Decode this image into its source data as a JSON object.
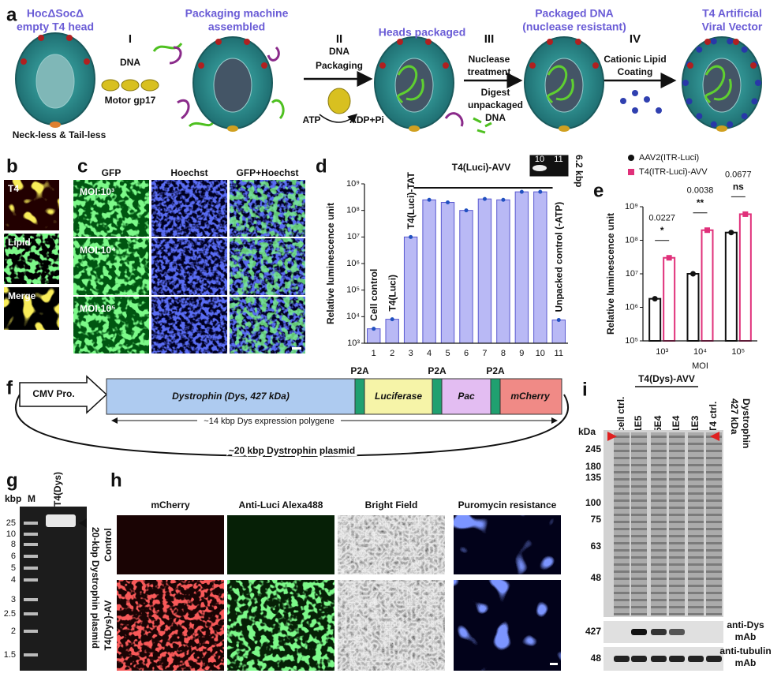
{
  "panel_a": {
    "letter": "a",
    "titles": [
      "HocΔSocΔ",
      "empty T4 head",
      "Packaging machine",
      "assembled",
      "Heads packaged",
      "Packaged DNA",
      "(nuclease resistant)",
      "T4 Artificial",
      "Viral Vector"
    ],
    "head_note": "Neck-less & Tail-less",
    "step_1": {
      "numeral": "I",
      "text": [
        "DNA",
        "Motor gp17"
      ]
    },
    "step_2": {
      "numeral": "II",
      "text": [
        "DNA",
        "Packaging",
        "ATP",
        "ADP+Pi"
      ]
    },
    "step_3": {
      "numeral": "III",
      "text": [
        "Nuclease",
        "treatment",
        "Digest",
        "unpackaged",
        "DNA"
      ]
    },
    "step_4": {
      "numeral": "IV",
      "text": [
        "Cationic Lipid",
        "Coating"
      ]
    }
  },
  "panel_b": {
    "letter": "b",
    "labels": [
      "T4",
      "Lipid",
      "Merge"
    ]
  },
  "panel_c": {
    "letter": "c",
    "columns": [
      "GFP",
      "Hoechst",
      "GFP+Hoechst"
    ],
    "rows": [
      "MOI:10³",
      "MOI:10⁴",
      "MOI:10⁵"
    ]
  },
  "chart_data": [
    {
      "type": "bar",
      "letter": "d",
      "ylabel": "Relative luminescence unit",
      "categories": [
        "1",
        "2",
        "3",
        "4",
        "5",
        "6",
        "7",
        "8",
        "9",
        "10",
        "11"
      ],
      "values": [
        3500,
        8000,
        10000000,
        250000000,
        200000000,
        100000000,
        270000000,
        250000000,
        500000000,
        500000000,
        7500
      ],
      "color": "#b9b9f5",
      "yscale": "log",
      "ylim": [
        1000,
        1000000000
      ],
      "yticks": [
        {
          "value": 1000,
          "label": "10³"
        },
        {
          "value": 10000,
          "label": "10⁴"
        },
        {
          "value": 100000,
          "label": "10⁵"
        },
        {
          "value": 1000000,
          "label": "10⁶"
        },
        {
          "value": 10000000,
          "label": "10⁷"
        },
        {
          "value": 100000000,
          "label": "10⁸"
        },
        {
          "value": 1000000000,
          "label": "10⁹"
        }
      ],
      "bar_labels": [
        "Cell control",
        "T4(Luci)",
        "T4(Luci)-TAT",
        null,
        null,
        null,
        null,
        null,
        null,
        null,
        "Unpacked control (-ATP)"
      ],
      "group_label": "T4(Luci)-AVV",
      "inset": {
        "lanes": [
          "10",
          "11"
        ],
        "size": "6.2 kbp"
      }
    },
    {
      "type": "grouped_bar",
      "letter": "e",
      "ylabel": "Relative luminescence unit",
      "xlabel": "MOI",
      "categories": [
        "10³",
        "10⁴",
        "10⁵"
      ],
      "series": [
        {
          "name": "AAV2(ITR-Luci)",
          "color": "#111111",
          "values": [
            1800000,
            10000000,
            170000000
          ]
        },
        {
          "name": "T4(ITR-Luci)-AVV",
          "color": "#e0307a",
          "values": [
            30000000,
            200000000,
            600000000
          ]
        }
      ],
      "yscale": "log",
      "ylim": [
        100000,
        1000000000
      ],
      "yticks": [
        {
          "value": 100000,
          "label": "10⁵"
        },
        {
          "value": 1000000,
          "label": "10⁶"
        },
        {
          "value": 10000000,
          "label": "10⁷"
        },
        {
          "value": 100000000,
          "label": "10⁸"
        },
        {
          "value": 1000000000,
          "label": "10⁹"
        }
      ],
      "p_values": [
        "0.0227",
        "0.0038",
        "0.0677"
      ],
      "significance": [
        "*",
        "**",
        "ns"
      ]
    }
  ],
  "panel_f": {
    "letter": "f",
    "promoter": "CMV Pro.",
    "segments": [
      "Dystrophin (Dys, 427 kDa)",
      "Luciferase",
      "Pac",
      "mCherry"
    ],
    "linkers": [
      "P2A",
      "P2A",
      "P2A"
    ],
    "span_label": "~14 kbp Dys expression polygene",
    "plasmid_label": "~20 kbp Dystrophin plasmid"
  },
  "panel_g": {
    "letter": "g",
    "unit": "kbp",
    "lanes": [
      "M",
      "T4(Dys)"
    ],
    "ladder": [
      "25",
      "10",
      "8",
      "6",
      "5",
      "4",
      "3",
      "2.5",
      "2",
      "1.5"
    ],
    "band_label": "20-kbp Dystrophin plasmid"
  },
  "panel_h": {
    "letter": "h",
    "columns": [
      "mCherry",
      "Anti-Luci Alexa488",
      "Bright Field",
      "Puromycin resistance"
    ],
    "rows": [
      "Control",
      "T4(Dys)-AV"
    ]
  },
  "panel_i": {
    "letter": "i",
    "lanes": [
      "cell ctrl.",
      "1E5",
      "5E4",
      "1E4",
      "1E3",
      "T4 ctrl."
    ],
    "group": "T4(Dys)-AVV",
    "unit": "kDa",
    "markers": [
      "245",
      "180",
      "135",
      "100",
      "75",
      "63",
      "48"
    ],
    "target": [
      "427 kDa",
      "Dystrophin"
    ],
    "blots": [
      {
        "marker": "427",
        "label": [
          "anti-Dys",
          "mAb"
        ]
      },
      {
        "marker": "48",
        "label": [
          "anti-tubulin",
          "mAb"
        ]
      }
    ]
  }
}
